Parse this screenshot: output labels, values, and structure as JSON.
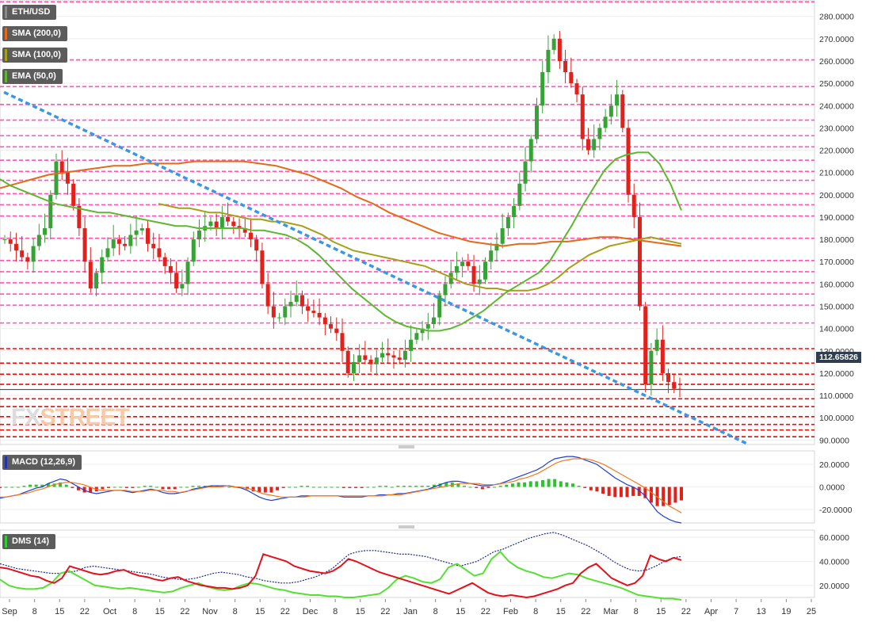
{
  "chart_data": {
    "type": "candlestick",
    "title": "ETH/USD",
    "last_price_label": "112.65826",
    "watermark": {
      "part1": "FX",
      "part2": "STREET"
    },
    "x_ticks": [
      "Sep",
      "8",
      "15",
      "22",
      "Oct",
      "8",
      "15",
      "22",
      "Nov",
      "8",
      "15",
      "22",
      "Dec",
      "8",
      "15",
      "22",
      "Jan",
      "8",
      "15",
      "22",
      "Feb",
      "8",
      "15",
      "22",
      "Mar",
      "8",
      "15",
      "22",
      "Apr",
      "7",
      "13",
      "19",
      "25"
    ],
    "price_panel": {
      "ylim": [
        88,
        287
      ],
      "y_ticks": [
        "280.0000",
        "270.0000",
        "260.0000",
        "250.0000",
        "240.0000",
        "230.0000",
        "220.0000",
        "210.0000",
        "200.0000",
        "190.0000",
        "180.0000",
        "170.0000",
        "160.0000",
        "150.0000",
        "140.0000",
        "130.0000",
        "120.0000",
        "110.0000",
        "100.0000",
        "90.0000"
      ],
      "indicators": [
        {
          "name": "SMA (200,0)",
          "color": "#e36a1b"
        },
        {
          "name": "SMA (100,0)",
          "color": "#a5a017"
        },
        {
          "name": "EMA (50,0)",
          "color": "#5cb82e"
        }
      ],
      "candle_colors": {
        "up": "#37a337",
        "down": "#e1211b"
      },
      "resistance_levels": [
        286.5,
        260.5,
        248.5,
        240.5,
        233.5,
        226.5,
        221.5,
        215.5,
        210.5,
        206.5,
        200.5,
        195.5,
        190.5,
        180.5,
        170.5,
        165.5,
        160.5,
        155.5,
        150.5,
        142.5
      ],
      "support_levels": [
        131,
        124.5,
        119.5,
        115,
        108.5,
        105,
        100.5,
        97,
        94.5,
        91.5
      ],
      "trendline": {
        "from": [
          1,
          246
        ],
        "to": [
          186,
          88
        ],
        "color": "#3a97e6"
      },
      "closes": [
        180,
        178,
        175,
        172,
        170,
        177,
        182,
        185,
        200,
        215,
        210,
        205,
        195,
        185,
        170,
        158,
        165,
        172,
        176,
        180,
        178,
        177,
        182,
        184,
        185,
        178,
        176,
        172,
        168,
        165,
        158,
        160,
        170,
        180,
        184,
        186,
        188,
        185,
        190,
        188,
        186,
        185,
        183,
        180,
        175,
        160,
        150,
        145,
        145,
        150,
        152,
        155,
        150,
        148,
        147,
        145,
        142,
        140,
        138,
        130,
        120,
        125,
        128,
        126,
        124,
        127,
        129,
        128,
        127,
        126,
        130,
        135,
        138,
        140,
        142,
        145,
        155,
        160,
        165,
        168,
        170,
        168,
        160,
        162,
        170,
        175,
        178,
        185,
        190,
        195,
        205,
        215,
        225,
        240,
        255,
        265,
        270,
        260,
        255,
        250,
        245,
        225,
        220,
        225,
        230,
        235,
        240,
        245,
        230,
        200,
        190,
        150,
        115,
        130,
        135,
        120,
        116,
        113,
        112.7
      ],
      "ema50": [
        207,
        204,
        202,
        200,
        198,
        196,
        195,
        194,
        193,
        192,
        192,
        191,
        190,
        189,
        188,
        187,
        186,
        186,
        185,
        185,
        185,
        185,
        185,
        184,
        184,
        183,
        182,
        180,
        177,
        173,
        168,
        163,
        158,
        154,
        150,
        146,
        143,
        141,
        140,
        139,
        139,
        140,
        142,
        145,
        148,
        152,
        156,
        159,
        162,
        165,
        170,
        178,
        186,
        195,
        203,
        211,
        216,
        218,
        219,
        219,
        214,
        205,
        193
      ],
      "sma100": [
        196,
        195,
        194,
        194,
        193,
        192,
        192,
        191,
        190,
        189,
        189,
        188,
        188,
        187,
        186,
        184,
        182,
        179,
        177,
        175,
        174,
        173,
        172,
        171,
        170,
        169,
        168,
        166,
        164,
        162,
        160,
        159,
        158,
        158,
        157,
        157,
        157,
        158,
        160,
        163,
        167,
        170,
        173,
        175,
        177,
        178,
        179,
        180,
        181,
        180,
        179,
        178
      ],
      "sma200": [
        203,
        205,
        207,
        209,
        210,
        211,
        212,
        213,
        213,
        214,
        214,
        214,
        215,
        215,
        215,
        215,
        214,
        213,
        211,
        209,
        206,
        203,
        199,
        196,
        192,
        189,
        186,
        183,
        181,
        179,
        178,
        177,
        178,
        178,
        179,
        179,
        180,
        181,
        181,
        180,
        179,
        178,
        177
      ]
    },
    "macd_panel": {
      "name": "MACD (12,26,9)",
      "ylim": [
        -32,
        32
      ],
      "y_ticks": [
        "20.0000",
        "0.0000",
        "-20.0000"
      ],
      "macd": [
        -10,
        -9,
        -8,
        -7,
        -5,
        -3,
        -1,
        0,
        3,
        5,
        7,
        6,
        3,
        0,
        -3,
        -5,
        -6,
        -5,
        -4,
        -3,
        -3,
        -4,
        -5,
        -4,
        -3,
        -2,
        -3,
        -5,
        -6,
        -6,
        -5,
        -4,
        -2,
        -1,
        0,
        1,
        1,
        1,
        1,
        0,
        -1,
        -3,
        -6,
        -9,
        -11,
        -12,
        -11,
        -10,
        -9,
        -9,
        -8,
        -8,
        -8,
        -8,
        -8,
        -8,
        -8,
        -9,
        -9,
        -9,
        -9,
        -8,
        -8,
        -7,
        -7,
        -7,
        -6,
        -6,
        -5,
        -4,
        -3,
        -2,
        0,
        2,
        4,
        5,
        5,
        4,
        3,
        2,
        1,
        1,
        2,
        3,
        5,
        7,
        9,
        11,
        13,
        15,
        18,
        22,
        25,
        26,
        27,
        27,
        26,
        24,
        22,
        20,
        16,
        12,
        8,
        5,
        2,
        0,
        -3,
        -8,
        -15,
        -22,
        -26,
        -29,
        -31,
        -32
      ],
      "signal": [
        -9,
        -9,
        -8,
        -7,
        -6,
        -5,
        -3,
        -2,
        0,
        2,
        3,
        4,
        4,
        3,
        2,
        0,
        -2,
        -3,
        -3,
        -3,
        -3,
        -3,
        -4,
        -4,
        -4,
        -3,
        -3,
        -3,
        -4,
        -4,
        -5,
        -4,
        -3,
        -2,
        -1,
        0,
        0,
        0,
        1,
        0,
        0,
        -1,
        -2,
        -4,
        -6,
        -7,
        -8,
        -9,
        -9,
        -9,
        -9,
        -9,
        -8,
        -8,
        -8,
        -8,
        -8,
        -8,
        -8,
        -8,
        -8,
        -8,
        -8,
        -8,
        -8,
        -7,
        -7,
        -7,
        -6,
        -5,
        -4,
        -3,
        -2,
        -1,
        0,
        1,
        2,
        3,
        3,
        3,
        3,
        2,
        2,
        2,
        3,
        4,
        5,
        7,
        8,
        10,
        12,
        15,
        18,
        21,
        23,
        24,
        25,
        25,
        25,
        24,
        22,
        20,
        17,
        14,
        11,
        8,
        5,
        2,
        -1,
        -5,
        -9,
        -13,
        -17,
        -20,
        -23
      ]
    },
    "dms_panel": {
      "name": "DMS (14)",
      "ylim": [
        10,
        66
      ],
      "y_ticks": [
        "60.0000",
        "40.0000",
        "20.0000"
      ],
      "adx": [
        38,
        36,
        34,
        33,
        32,
        31,
        30,
        30,
        31,
        32,
        35,
        36,
        35,
        34,
        33,
        32,
        31,
        30,
        29,
        27,
        26,
        25,
        25,
        26,
        28,
        30,
        31,
        30,
        29,
        27,
        26,
        24,
        23,
        22,
        22,
        23,
        25,
        27,
        30,
        34,
        40,
        46,
        48,
        49,
        49,
        48,
        47,
        46,
        46,
        45,
        44,
        42,
        40,
        38,
        36,
        38,
        40,
        44,
        48,
        50,
        53,
        56,
        59,
        61,
        63,
        64,
        62,
        59,
        56,
        53,
        49,
        45,
        40,
        36,
        33,
        32,
        33,
        36,
        40,
        43,
        44
      ],
      "di_plus": [
        25,
        20,
        18,
        17,
        17,
        18,
        22,
        30,
        32,
        28,
        24,
        20,
        19,
        18,
        17,
        18,
        17,
        16,
        15,
        14,
        15,
        18,
        20,
        22,
        19,
        17,
        16,
        17,
        20,
        22,
        21,
        19,
        17,
        16,
        14,
        13,
        12,
        12,
        11,
        11,
        10,
        10,
        11,
        12,
        13,
        18,
        25,
        28,
        26,
        23,
        22,
        25,
        35,
        38,
        33,
        28,
        30,
        42,
        48,
        40,
        35,
        32,
        30,
        27,
        26,
        28,
        30,
        29,
        26,
        24,
        22,
        20,
        18,
        15,
        12,
        11,
        10,
        9,
        9,
        8
      ],
      "di_minus": [
        35,
        34,
        32,
        30,
        28,
        27,
        24,
        22,
        26,
        36,
        34,
        32,
        30,
        29,
        30,
        32,
        33,
        30,
        28,
        27,
        25,
        24,
        26,
        27,
        24,
        22,
        20,
        19,
        18,
        18,
        17,
        18,
        20,
        28,
        46,
        44,
        42,
        40,
        36,
        34,
        32,
        31,
        30,
        32,
        36,
        42,
        40,
        37,
        34,
        31,
        29,
        27,
        25,
        23,
        21,
        19,
        17,
        15,
        13,
        16,
        19,
        22,
        18,
        14,
        12,
        11,
        12,
        11,
        10,
        11,
        13,
        15,
        17,
        20,
        22,
        30,
        35,
        38,
        32,
        26,
        23,
        20,
        22,
        28,
        45,
        42,
        40,
        43,
        41
      ]
    }
  }
}
